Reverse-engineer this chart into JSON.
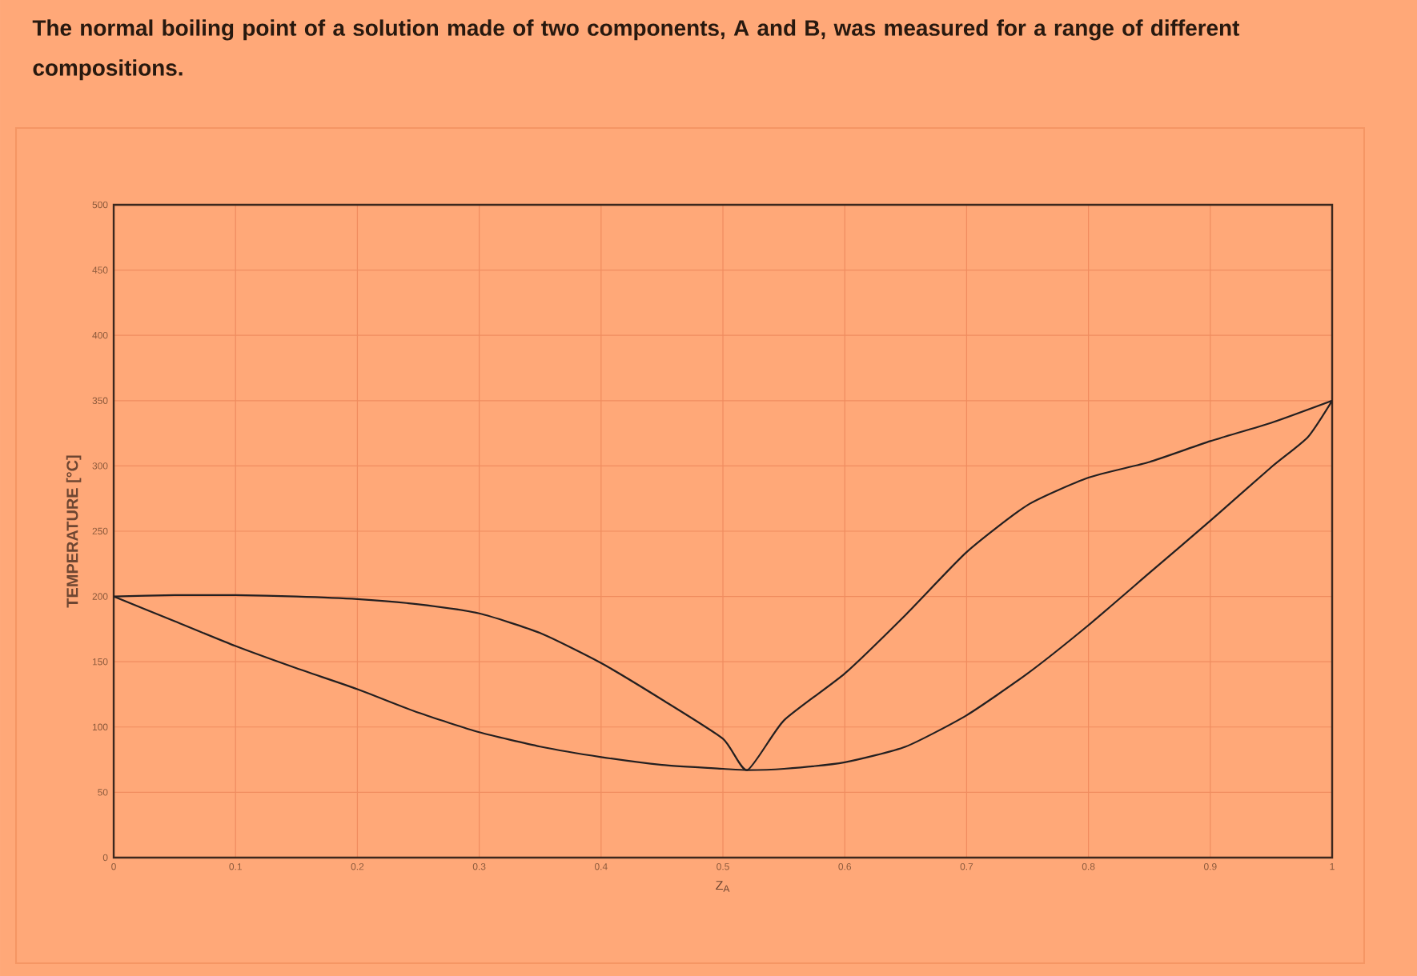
{
  "chart_data": {
    "type": "line",
    "title": "The normal boiling point of a solution made of two components, A and B, was measured for a range of different compositions.",
    "xlabel": "Z$_{A}$",
    "ylabel": "TEMPERATURE [°C]",
    "xlim": [
      0,
      1
    ],
    "ylim": [
      0,
      500
    ],
    "xticks": [
      0,
      0.1,
      0.2,
      0.3,
      0.4,
      0.5,
      0.6,
      0.7,
      0.8,
      0.9,
      1
    ],
    "yticks": [
      0,
      50,
      100,
      150,
      200,
      250,
      300,
      350,
      400,
      450,
      500
    ],
    "grid": true,
    "marker": "none",
    "line_style": "solid",
    "series": [
      {
        "color": "#231f20",
        "x": [
          0,
          0.05,
          0.1,
          0.15,
          0.2,
          0.25,
          0.3,
          0.35,
          0.4,
          0.45,
          0.5,
          0.52,
          0.55,
          0.6,
          0.65,
          0.7,
          0.75,
          0.8,
          0.85,
          0.9,
          0.95,
          1
        ],
        "values": [
          200,
          201,
          201,
          200,
          198,
          194,
          187,
          172,
          149,
          121,
          91,
          67,
          105,
          141,
          186,
          234,
          270,
          291,
          303,
          319,
          333,
          350
        ]
      },
      {
        "color": "#231f20",
        "x": [
          0,
          0.05,
          0.1,
          0.15,
          0.2,
          0.25,
          0.3,
          0.35,
          0.4,
          0.45,
          0.5,
          0.52,
          0.55,
          0.6,
          0.65,
          0.7,
          0.75,
          0.8,
          0.85,
          0.9,
          0.95,
          0.98,
          1
        ],
        "values": [
          200,
          181,
          162,
          145,
          129,
          111,
          96,
          85,
          77,
          71,
          68,
          67,
          68,
          73,
          85,
          109,
          141,
          178,
          218,
          258,
          299,
          322,
          350
        ]
      }
    ]
  }
}
